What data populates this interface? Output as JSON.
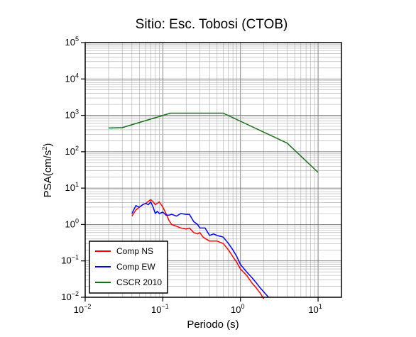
{
  "chart_data": {
    "type": "line",
    "title": "Sitio: Esc. Tobosi (CTOB)",
    "xlabel": "Periodo (s)",
    "ylabel_main": "PSA(cm/s",
    "ylabel_sup": "2",
    "ylabel_tail": ")",
    "x_scale": "log",
    "y_scale": "log",
    "xlim": [
      0.01,
      20
    ],
    "ylim": [
      0.01,
      100000
    ],
    "grid": true,
    "legend_position": "bottom-left",
    "x_ticks": [
      {
        "base": "10",
        "exp": "−2",
        "value": 0.01
      },
      {
        "base": "10",
        "exp": "−1",
        "value": 0.1
      },
      {
        "base": "10",
        "exp": "0",
        "value": 1
      },
      {
        "base": "10",
        "exp": "1",
        "value": 10
      }
    ],
    "y_ticks": [
      {
        "base": "10",
        "exp": "−2",
        "value": 0.01
      },
      {
        "base": "10",
        "exp": "−1",
        "value": 0.1
      },
      {
        "base": "10",
        "exp": "0",
        "value": 1
      },
      {
        "base": "10",
        "exp": "1",
        "value": 10
      },
      {
        "base": "10",
        "exp": "2",
        "value": 100
      },
      {
        "base": "10",
        "exp": "3",
        "value": 1000
      },
      {
        "base": "10",
        "exp": "4",
        "value": 10000
      },
      {
        "base": "10",
        "exp": "5",
        "value": 100000
      }
    ],
    "series": [
      {
        "name": "Comp NS",
        "color": "#ff0000",
        "x": [
          0.04,
          0.045,
          0.05,
          0.055,
          0.06,
          0.065,
          0.07,
          0.075,
          0.08,
          0.09,
          0.1,
          0.11,
          0.12,
          0.13,
          0.15,
          0.17,
          0.2,
          0.22,
          0.25,
          0.28,
          0.3,
          0.33,
          0.36,
          0.4,
          0.45,
          0.5,
          0.6,
          0.7,
          0.8,
          0.9,
          1.0,
          1.2,
          1.4,
          1.6,
          1.8,
          2.0
        ],
        "y": [
          1.7,
          2.5,
          3.0,
          3.5,
          3.8,
          4.3,
          4.8,
          4.2,
          3.5,
          4.2,
          3.0,
          2.0,
          1.3,
          1.0,
          0.9,
          0.8,
          0.75,
          0.8,
          0.6,
          0.55,
          0.6,
          0.45,
          0.4,
          0.35,
          0.35,
          0.35,
          0.3,
          0.2,
          0.13,
          0.09,
          0.06,
          0.04,
          0.025,
          0.018,
          0.013,
          0.009
        ]
      },
      {
        "name": "Comp EW",
        "color": "#0000ff",
        "x": [
          0.04,
          0.045,
          0.05,
          0.055,
          0.06,
          0.065,
          0.07,
          0.075,
          0.08,
          0.085,
          0.09,
          0.1,
          0.11,
          0.12,
          0.13,
          0.15,
          0.17,
          0.2,
          0.22,
          0.25,
          0.28,
          0.3,
          0.35,
          0.4,
          0.45,
          0.5,
          0.6,
          0.7,
          0.8,
          0.9,
          1.0,
          1.2,
          1.4,
          1.6,
          1.8,
          2.0,
          2.3
        ],
        "y": [
          2.0,
          3.3,
          3.0,
          3.5,
          3.8,
          3.5,
          4.2,
          3.0,
          2.0,
          2.3,
          2.0,
          2.2,
          1.8,
          1.8,
          1.9,
          1.7,
          2.0,
          1.9,
          1.9,
          1.2,
          1.0,
          0.8,
          0.8,
          0.5,
          0.55,
          0.5,
          0.45,
          0.3,
          0.2,
          0.13,
          0.08,
          0.05,
          0.035,
          0.025,
          0.018,
          0.014,
          0.01
        ]
      },
      {
        "name": "CSCR 2010",
        "color": "#1a6e1a",
        "x": [
          0.02,
          0.03,
          0.125,
          0.6,
          4.0,
          10.0
        ],
        "y": [
          450,
          460,
          1150,
          1150,
          172,
          27
        ]
      }
    ]
  }
}
